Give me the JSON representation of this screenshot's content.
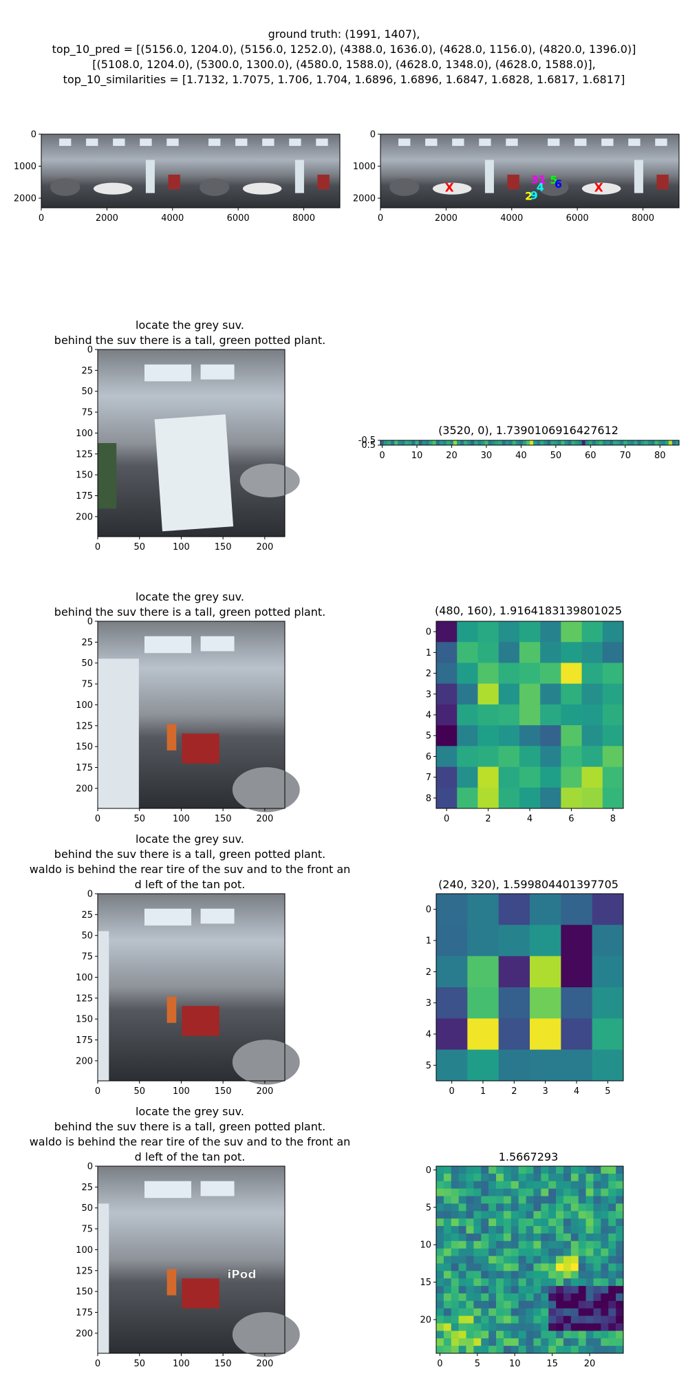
{
  "header": {
    "lines": [
      "ground truth: (1991, 1407),",
      "top_10_pred = [(5156.0, 1204.0), (5156.0, 1252.0), (4388.0, 1636.0), (4628.0, 1156.0), (4820.0, 1396.0)]",
      "[(5108.0, 1204.0), (5300.0, 1300.0), (4580.0, 1588.0), (4628.0, 1348.0), (4628.0, 1588.0)],",
      "top_10_similarities = [1.7132, 1.7075, 1.706, 1.704, 1.6896, 1.6896, 1.6847, 1.6828, 1.6817, 1.6817]"
    ]
  },
  "texts": {
    "q1": [
      "locate the grey suv.",
      "behind the suv there is a tall, green potted plant."
    ],
    "q2": [
      "locate the grey suv.",
      "behind the suv there is a tall, green potted plant."
    ],
    "q3": [
      "locate the grey suv.",
      "behind the suv there is a tall, green potted plant.",
      "waldo is behind the rear tire of the suv and to the front an",
      "d left of the tan pot."
    ],
    "q4": [
      "locate the grey suv.",
      "behind the suv there is a tall, green potted plant.",
      "waldo is behind the rear tire of the suv and to the front an",
      "d left of the tan pot."
    ],
    "strip_title": "(3520, 0), 1.7390106916427612",
    "hm1_title": "(480, 160), 1.9164183139801025",
    "hm2_title": "(240, 320), 1.599804401397705",
    "hm3_title": "1.5667293",
    "ipod_label": "iPod"
  },
  "colors": {
    "sky": "#b8c3cf",
    "ceiling": "#8d8f93",
    "floor": "#3a3d42",
    "viridis_low": "#440154",
    "viridis_high": "#fde725"
  },
  "chart_data": [
    {
      "type": "image",
      "panel": "panorama-left",
      "xlim": [
        0,
        9100
      ],
      "ylim": [
        2300,
        0
      ],
      "xticks": [
        0,
        2000,
        4000,
        6000,
        8000
      ],
      "yticks": [
        0,
        1000,
        2000
      ]
    },
    {
      "type": "scatter",
      "panel": "panorama-right",
      "xlim": [
        0,
        9100
      ],
      "ylim": [
        2300,
        0
      ],
      "xticks": [
        0,
        2000,
        4000,
        6000,
        8000
      ],
      "yticks": [
        0,
        1000,
        2000
      ],
      "ground_truth_markers": {
        "label": "X",
        "color": "#ff0000",
        "points": [
          [
            2100,
            1670
          ],
          [
            6650,
            1670
          ]
        ]
      },
      "rank_markers": [
        {
          "label": "1",
          "x": 4930,
          "y": 1410,
          "color": "#ff00ff"
        },
        {
          "label": "2",
          "x": 4520,
          "y": 1920,
          "color": "#ffff00"
        },
        {
          "label": "3",
          "x": 4700,
          "y": 1410,
          "color": "#ff00ff"
        },
        {
          "label": "4",
          "x": 4870,
          "y": 1640,
          "color": "#00ffff"
        },
        {
          "label": "5",
          "x": 5280,
          "y": 1420,
          "color": "#00ff00"
        },
        {
          "label": "6",
          "x": 5420,
          "y": 1550,
          "color": "#0000ff"
        },
        {
          "label": "9",
          "x": 4680,
          "y": 1900,
          "color": "#00ffff"
        }
      ]
    },
    {
      "type": "image",
      "panel": "view-1",
      "xlim": [
        0,
        224
      ],
      "ylim": [
        224,
        0
      ],
      "xticks": [
        0,
        50,
        100,
        150,
        200
      ],
      "yticks": [
        0,
        25,
        50,
        75,
        100,
        125,
        150,
        175,
        200
      ]
    },
    {
      "type": "heatmap",
      "panel": "strip",
      "xticks": [
        0,
        10,
        20,
        30,
        40,
        50,
        60,
        70,
        80
      ],
      "yticks": [
        -0.5,
        0.5
      ],
      "columns": 86,
      "values": [
        0.35,
        0.55,
        0.6,
        0.4,
        0.7,
        0.5,
        0.45,
        0.62,
        0.58,
        0.4,
        0.66,
        0.3,
        0.52,
        0.44,
        0.6,
        0.71,
        0.38,
        0.55,
        0.48,
        0.62,
        0.5,
        0.85,
        0.57,
        0.4,
        0.63,
        0.52,
        0.34,
        0.6,
        0.47,
        0.55,
        0.69,
        0.42,
        0.5,
        0.58,
        0.61,
        0.37,
        0.54,
        0.45,
        0.66,
        0.5,
        0.41,
        0.59,
        0.73,
        0.95,
        0.56,
        0.44,
        0.62,
        0.5,
        0.35,
        0.6,
        0.57,
        0.46,
        0.68,
        0.52,
        0.4,
        0.63,
        0.55,
        0.48,
        0.1,
        0.5,
        0.6,
        0.43,
        0.58,
        0.66,
        0.49,
        0.54,
        0.38,
        0.61,
        0.57,
        0.45,
        0.64,
        0.52,
        0.47,
        0.6,
        0.39,
        0.56,
        0.62,
        0.5,
        0.44,
        0.67,
        0.53,
        0.48,
        0.59,
        0.9,
        0.42,
        0.55
      ]
    },
    {
      "type": "image",
      "panel": "view-2",
      "xlim": [
        0,
        224
      ],
      "ylim": [
        224,
        0
      ],
      "xticks": [
        0,
        50,
        100,
        150,
        200
      ],
      "yticks": [
        0,
        25,
        50,
        75,
        100,
        125,
        150,
        175,
        200
      ]
    },
    {
      "type": "heatmap",
      "panel": "heatmap-9",
      "xticks": [
        0,
        2,
        4,
        6,
        8
      ],
      "yticks": [
        0,
        1,
        2,
        3,
        4,
        5,
        6,
        7,
        8
      ],
      "values": [
        [
          0.05,
          0.55,
          0.6,
          0.5,
          0.58,
          0.45,
          0.75,
          0.62,
          0.48
        ],
        [
          0.3,
          0.68,
          0.62,
          0.42,
          0.72,
          0.48,
          0.55,
          0.5,
          0.38
        ],
        [
          0.35,
          0.55,
          0.72,
          0.63,
          0.66,
          0.7,
          0.98,
          0.6,
          0.66
        ],
        [
          0.15,
          0.4,
          0.88,
          0.52,
          0.74,
          0.45,
          0.63,
          0.5,
          0.58
        ],
        [
          0.1,
          0.58,
          0.62,
          0.64,
          0.74,
          0.6,
          0.55,
          0.54,
          0.62
        ],
        [
          0.0,
          0.45,
          0.56,
          0.52,
          0.4,
          0.32,
          0.73,
          0.5,
          0.58
        ],
        [
          0.45,
          0.6,
          0.62,
          0.68,
          0.58,
          0.45,
          0.67,
          0.6,
          0.75
        ],
        [
          0.2,
          0.5,
          0.9,
          0.6,
          0.66,
          0.56,
          0.72,
          0.88,
          0.68
        ],
        [
          0.22,
          0.68,
          0.88,
          0.62,
          0.55,
          0.42,
          0.86,
          0.84,
          0.66
        ]
      ]
    },
    {
      "type": "image",
      "panel": "view-3",
      "xlim": [
        0,
        224
      ],
      "ylim": [
        224,
        0
      ],
      "xticks": [
        0,
        50,
        100,
        150,
        200
      ],
      "yticks": [
        0,
        25,
        50,
        75,
        100,
        125,
        150,
        175,
        200
      ]
    },
    {
      "type": "heatmap",
      "panel": "heatmap-6",
      "xticks": [
        0,
        1,
        2,
        3,
        4,
        5
      ],
      "yticks": [
        0,
        1,
        2,
        3,
        4,
        5
      ],
      "values": [
        [
          0.35,
          0.42,
          0.22,
          0.4,
          0.32,
          0.18
        ],
        [
          0.34,
          0.42,
          0.45,
          0.52,
          0.02,
          0.4
        ],
        [
          0.42,
          0.72,
          0.12,
          0.88,
          0.02,
          0.44
        ],
        [
          0.25,
          0.7,
          0.3,
          0.78,
          0.3,
          0.5
        ],
        [
          0.12,
          0.98,
          0.25,
          0.98,
          0.22,
          0.6
        ],
        [
          0.45,
          0.55,
          0.4,
          0.42,
          0.42,
          0.5
        ]
      ]
    },
    {
      "type": "image",
      "panel": "view-4",
      "xlim": [
        0,
        224
      ],
      "ylim": [
        224,
        0
      ],
      "xticks": [
        0,
        50,
        100,
        150,
        200
      ],
      "yticks": [
        0,
        25,
        50,
        75,
        100,
        125,
        150,
        175,
        200
      ]
    },
    {
      "type": "heatmap",
      "panel": "heatmap-25",
      "xticks": [
        0,
        5,
        10,
        15,
        20
      ],
      "yticks": [
        0,
        5,
        10,
        15,
        20
      ],
      "rows": 25,
      "columns": 25
    }
  ]
}
